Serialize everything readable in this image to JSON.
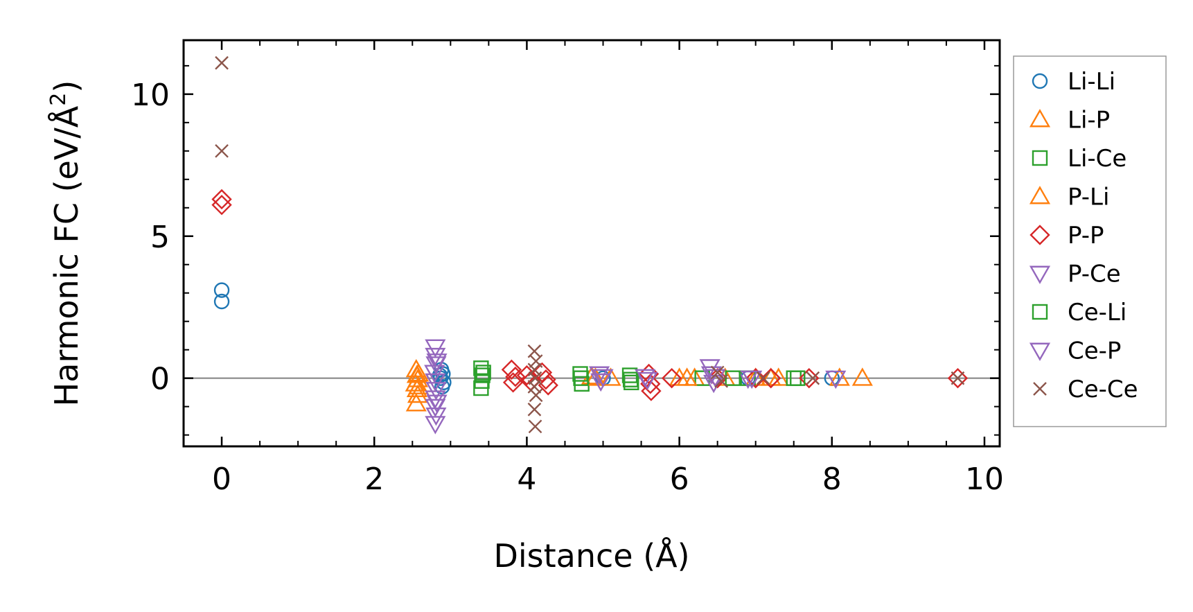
{
  "chart_data": {
    "type": "scatter",
    "xlabel": "Distance (Å)",
    "ylabel_main": "Harmonic FC (eV/Å",
    "ylabel_sup": "2",
    "ylabel_close": ")",
    "xlim": [
      -0.5,
      10.2
    ],
    "ylim": [
      -2.4,
      11.9
    ],
    "xticks": [
      0,
      2,
      4,
      6,
      8,
      10
    ],
    "yticks": [
      0,
      5,
      10
    ],
    "x_minor_step": 0.5,
    "y_minor_step": 1,
    "zero_line": true,
    "legend_position": "right",
    "series": [
      {
        "name": "Li-Li",
        "marker": "circle",
        "color": "#1f77b4",
        "points": [
          [
            0,
            3.1
          ],
          [
            0,
            2.7
          ],
          [
            2.88,
            0.3
          ],
          [
            2.9,
            0.15
          ],
          [
            2.87,
            0.0
          ],
          [
            2.91,
            -0.15
          ],
          [
            2.89,
            -0.3
          ],
          [
            2.86,
            0.1
          ],
          [
            5.0,
            0.0
          ],
          [
            6.9,
            0.0
          ],
          [
            8.0,
            0.0
          ]
        ]
      },
      {
        "name": "Li-P",
        "marker": "triangle-up",
        "color": "#ff7f0e",
        "points": [
          [
            2.55,
            0.3
          ],
          [
            2.56,
            0.1
          ],
          [
            2.57,
            -0.05
          ],
          [
            2.54,
            -0.2
          ],
          [
            2.56,
            -0.4
          ],
          [
            2.57,
            -0.6
          ],
          [
            2.55,
            -0.9
          ],
          [
            4.85,
            0.05
          ],
          [
            6.0,
            0.0
          ],
          [
            6.2,
            0.0
          ],
          [
            7.0,
            0.0
          ],
          [
            7.3,
            0.0
          ],
          [
            8.1,
            0.0
          ],
          [
            8.4,
            0.0
          ]
        ]
      },
      {
        "name": "Li-Ce",
        "marker": "square",
        "color": "#2ca02c",
        "points": [
          [
            3.4,
            0.35
          ],
          [
            3.42,
            0.1
          ],
          [
            3.41,
            -0.1
          ],
          [
            3.4,
            -0.35
          ],
          [
            4.7,
            0.15
          ],
          [
            4.72,
            -0.2
          ],
          [
            5.35,
            0.1
          ],
          [
            5.37,
            -0.15
          ],
          [
            6.3,
            0.0
          ],
          [
            6.9,
            0.0
          ],
          [
            7.5,
            0.0
          ]
        ]
      },
      {
        "name": "P-Li",
        "marker": "triangle-up",
        "color": "#ff7f0e",
        "points": [
          [
            2.58,
            0.15
          ],
          [
            2.58,
            -0.3
          ],
          [
            4.9,
            0.0
          ],
          [
            5.1,
            0.0
          ],
          [
            6.1,
            0.0
          ],
          [
            6.6,
            0.0
          ],
          [
            7.2,
            0.0
          ]
        ]
      },
      {
        "name": "P-P",
        "marker": "diamond",
        "color": "#d62728",
        "points": [
          [
            0,
            6.3
          ],
          [
            0,
            6.1
          ],
          [
            3.8,
            0.3
          ],
          [
            3.82,
            -0.15
          ],
          [
            3.85,
            0.05
          ],
          [
            4.0,
            0.1
          ],
          [
            4.05,
            -0.1
          ],
          [
            4.2,
            0.2
          ],
          [
            4.25,
            -0.05
          ],
          [
            4.28,
            -0.25
          ],
          [
            5.6,
            0.15
          ],
          [
            5.62,
            -0.2
          ],
          [
            5.63,
            -0.45
          ],
          [
            5.9,
            0.0
          ],
          [
            6.5,
            0.0
          ],
          [
            7.0,
            0.0
          ],
          [
            7.2,
            0.0
          ],
          [
            7.7,
            0.0
          ],
          [
            9.65,
            0.0
          ]
        ]
      },
      {
        "name": "P-Ce",
        "marker": "triangle-down",
        "color": "#9467bd",
        "points": [
          [
            2.8,
            1.1
          ],
          [
            2.8,
            0.8
          ],
          [
            2.81,
            0.5
          ],
          [
            2.79,
            0.2
          ],
          [
            2.8,
            -0.1
          ],
          [
            2.81,
            -0.4
          ],
          [
            2.8,
            -0.7
          ],
          [
            2.8,
            -1.0
          ],
          [
            2.81,
            -1.3
          ],
          [
            2.8,
            -1.6
          ],
          [
            4.95,
            0.15
          ],
          [
            4.97,
            -0.1
          ],
          [
            5.55,
            0.05
          ],
          [
            6.4,
            0.4
          ],
          [
            6.42,
            0.15
          ],
          [
            6.45,
            -0.15
          ],
          [
            6.9,
            0.0
          ],
          [
            8.05,
            0.0
          ]
        ]
      },
      {
        "name": "Ce-Li",
        "marker": "square",
        "color": "#2ca02c",
        "points": [
          [
            3.43,
            0.2
          ],
          [
            4.71,
            0.0
          ],
          [
            5.36,
            -0.05
          ],
          [
            6.7,
            0.0
          ],
          [
            7.55,
            0.0
          ]
        ]
      },
      {
        "name": "Ce-P",
        "marker": "triangle-down",
        "color": "#9467bd",
        "points": [
          [
            2.82,
            0.6
          ],
          [
            2.82,
            -0.85
          ],
          [
            5.0,
            0.05
          ],
          [
            5.58,
            -0.05
          ],
          [
            6.47,
            0.05
          ],
          [
            6.95,
            0.0
          ]
        ]
      },
      {
        "name": "Ce-Ce",
        "marker": "x",
        "color": "#8c564b",
        "points": [
          [
            0,
            11.1
          ],
          [
            0,
            8.0
          ],
          [
            4.1,
            0.95
          ],
          [
            4.12,
            0.6
          ],
          [
            4.1,
            0.3
          ],
          [
            4.11,
            0.0
          ],
          [
            4.1,
            -0.3
          ],
          [
            4.12,
            -0.6
          ],
          [
            4.1,
            -1.1
          ],
          [
            4.11,
            -1.7
          ],
          [
            6.5,
            0.2
          ],
          [
            6.55,
            -0.1
          ],
          [
            7.1,
            0.0
          ],
          [
            7.75,
            0.0
          ],
          [
            9.65,
            0.0
          ]
        ]
      }
    ]
  }
}
